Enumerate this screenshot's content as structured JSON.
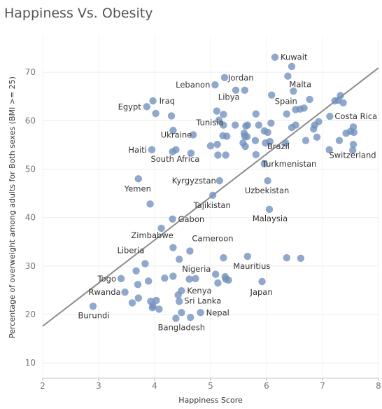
{
  "chart_data": {
    "type": "scatter",
    "title": "Happiness Vs. Obesity",
    "xlabel": "Happiness Score",
    "ylabel": "Percentage of overweight among adults for Both sexes (BMI >= 25)",
    "xlim": [
      2,
      8
    ],
    "ylim": [
      10,
      75
    ],
    "xticks": [
      2,
      3,
      4,
      5,
      6,
      7,
      8
    ],
    "yticks": [
      10,
      20,
      30,
      40,
      50,
      60,
      70
    ],
    "grid": true,
    "point_color": "#6f8fbc",
    "trend_color": "#8c8c8c",
    "trendline": {
      "x": [
        2,
        8
      ],
      "y": [
        17.6,
        70.9
      ]
    },
    "points": [
      {
        "x": 6.15,
        "y": 73.1,
        "label": "Kuwait"
      },
      {
        "x": 6.45,
        "y": 71.2
      },
      {
        "x": 6.38,
        "y": 69.2,
        "label": "Malta"
      },
      {
        "x": 5.25,
        "y": 68.9,
        "label": "Jordan"
      },
      {
        "x": 5.08,
        "y": 67.4,
        "label": "Lebanon"
      },
      {
        "x": 5.45,
        "y": 66.3
      },
      {
        "x": 5.61,
        "y": 66.3
      },
      {
        "x": 6.48,
        "y": 66.1
      },
      {
        "x": 6.09,
        "y": 65.3
      },
      {
        "x": 7.32,
        "y": 65.2
      },
      {
        "x": 7.28,
        "y": 64.2
      },
      {
        "x": 7.37,
        "y": 63.7
      },
      {
        "x": 7.22,
        "y": 64.1
      },
      {
        "x": 6.77,
        "y": 64.4
      },
      {
        "x": 3.97,
        "y": 64.1,
        "label": "Iraq"
      },
      {
        "x": 3.86,
        "y": 62.9,
        "label": "Egypt"
      },
      {
        "x": 4.02,
        "y": 61.5
      },
      {
        "x": 4.3,
        "y": 61.0
      },
      {
        "x": 5.11,
        "y": 62.0,
        "label": "Libya"
      },
      {
        "x": 5.23,
        "y": 61.3
      },
      {
        "x": 5.15,
        "y": 60.1
      },
      {
        "x": 6.36,
        "y": 61.4,
        "label": "Spain"
      },
      {
        "x": 6.52,
        "y": 62.3
      },
      {
        "x": 6.6,
        "y": 62.4
      },
      {
        "x": 6.67,
        "y": 62.6
      },
      {
        "x": 5.81,
        "y": 61.4
      },
      {
        "x": 7.13,
        "y": 60.9,
        "label": "Costa Rica"
      },
      {
        "x": 6.93,
        "y": 59.8
      },
      {
        "x": 6.86,
        "y": 59.1
      },
      {
        "x": 6.84,
        "y": 58.3
      },
      {
        "x": 7.55,
        "y": 58.7
      },
      {
        "x": 7.5,
        "y": 57.8
      },
      {
        "x": 7.42,
        "y": 57.4
      },
      {
        "x": 7.56,
        "y": 57.6
      },
      {
        "x": 7.3,
        "y": 55.9
      },
      {
        "x": 6.45,
        "y": 58.6,
        "label": "Brazil"
      },
      {
        "x": 6.52,
        "y": 59.1
      },
      {
        "x": 6.08,
        "y": 59.5
      },
      {
        "x": 5.96,
        "y": 57.9
      },
      {
        "x": 6.02,
        "y": 57.6
      },
      {
        "x": 5.86,
        "y": 59.1
      },
      {
        "x": 5.66,
        "y": 59.1
      },
      {
        "x": 5.63,
        "y": 58.9
      },
      {
        "x": 5.44,
        "y": 59.1
      },
      {
        "x": 5.23,
        "y": 59.1
      },
      {
        "x": 5.6,
        "y": 57.4
      },
      {
        "x": 5.61,
        "y": 56.8
      },
      {
        "x": 5.65,
        "y": 56.7
      },
      {
        "x": 5.22,
        "y": 56.9,
        "label": "Tunisia"
      },
      {
        "x": 5.29,
        "y": 56.8
      },
      {
        "x": 5.8,
        "y": 55.9
      },
      {
        "x": 5.58,
        "y": 55.4
      },
      {
        "x": 5.62,
        "y": 54.7
      },
      {
        "x": 5.98,
        "y": 55.4
      },
      {
        "x": 6.06,
        "y": 55.7
      },
      {
        "x": 6.34,
        "y": 55.4
      },
      {
        "x": 6.7,
        "y": 55.9
      },
      {
        "x": 6.9,
        "y": 56.6
      },
      {
        "x": 4.33,
        "y": 58.0
      },
      {
        "x": 4.69,
        "y": 57.1,
        "label": "Ukraine"
      },
      {
        "x": 5.12,
        "y": 55.1
      },
      {
        "x": 5.0,
        "y": 54.8
      },
      {
        "x": 3.95,
        "y": 54.0,
        "label": "Haiti"
      },
      {
        "x": 4.32,
        "y": 53.6
      },
      {
        "x": 4.38,
        "y": 54.0,
        "label": "South Africa"
      },
      {
        "x": 4.65,
        "y": 53.3
      },
      {
        "x": 5.13,
        "y": 52.9
      },
      {
        "x": 5.27,
        "y": 52.9
      },
      {
        "x": 5.81,
        "y": 53.0
      },
      {
        "x": 5.96,
        "y": 51.1,
        "label": "Turkmenistan"
      },
      {
        "x": 7.12,
        "y": 54.0
      },
      {
        "x": 7.55,
        "y": 55.1,
        "label": "Switzerland"
      },
      {
        "x": 7.54,
        "y": 53.9
      },
      {
        "x": 3.71,
        "y": 48.0,
        "label": "Yemen"
      },
      {
        "x": 5.16,
        "y": 47.6,
        "label": "Kyrgyzstan"
      },
      {
        "x": 6.02,
        "y": 47.6,
        "label": "Uzbekistan"
      },
      {
        "x": 5.04,
        "y": 44.6,
        "label": "Tajikistan"
      },
      {
        "x": 3.92,
        "y": 42.8
      },
      {
        "x": 6.05,
        "y": 41.7,
        "label": "Malaysia"
      },
      {
        "x": 4.32,
        "y": 39.7,
        "label": "Gabon"
      },
      {
        "x": 4.12,
        "y": 37.8,
        "label": "Zimbabwe"
      },
      {
        "x": 4.33,
        "y": 33.8
      },
      {
        "x": 4.63,
        "y": 33.1,
        "label": "Cameroon"
      },
      {
        "x": 4.44,
        "y": 31.4,
        "label": "Nigeria"
      },
      {
        "x": 5.23,
        "y": 31.7
      },
      {
        "x": 5.66,
        "y": 32.0,
        "label": "Mauritius"
      },
      {
        "x": 6.36,
        "y": 31.7
      },
      {
        "x": 6.61,
        "y": 31.6
      },
      {
        "x": 3.83,
        "y": 30.5,
        "label": "Liberia"
      },
      {
        "x": 3.67,
        "y": 29.0
      },
      {
        "x": 3.4,
        "y": 27.4,
        "label": "Togo"
      },
      {
        "x": 3.89,
        "y": 26.9
      },
      {
        "x": 3.7,
        "y": 26.2
      },
      {
        "x": 4.18,
        "y": 27.5
      },
      {
        "x": 4.33,
        "y": 27.9
      },
      {
        "x": 4.62,
        "y": 27.3
      },
      {
        "x": 4.73,
        "y": 27.4
      },
      {
        "x": 5.09,
        "y": 28.3
      },
      {
        "x": 5.13,
        "y": 26.5
      },
      {
        "x": 5.26,
        "y": 27.8
      },
      {
        "x": 5.27,
        "y": 27.3
      },
      {
        "x": 5.32,
        "y": 27.1
      },
      {
        "x": 5.92,
        "y": 26.8,
        "label": "Japan"
      },
      {
        "x": 3.47,
        "y": 24.6,
        "label": "Rwanda"
      },
      {
        "x": 3.71,
        "y": 23.4
      },
      {
        "x": 3.6,
        "y": 22.4
      },
      {
        "x": 3.93,
        "y": 22.7
      },
      {
        "x": 3.97,
        "y": 21.8
      },
      {
        "x": 4.03,
        "y": 22.9
      },
      {
        "x": 3.96,
        "y": 21.4
      },
      {
        "x": 4.08,
        "y": 21.1
      },
      {
        "x": 4.48,
        "y": 24.9,
        "label": "Kenya"
      },
      {
        "x": 4.42,
        "y": 24.0
      },
      {
        "x": 4.44,
        "y": 22.7,
        "label": "Sri Lanka"
      },
      {
        "x": 2.9,
        "y": 21.7,
        "label": "Burundi"
      },
      {
        "x": 4.48,
        "y": 20.4
      },
      {
        "x": 4.82,
        "y": 20.4,
        "label": "Nepal"
      },
      {
        "x": 4.38,
        "y": 19.2,
        "label": "Bangladesh"
      },
      {
        "x": 4.64,
        "y": 19.4
      }
    ]
  }
}
